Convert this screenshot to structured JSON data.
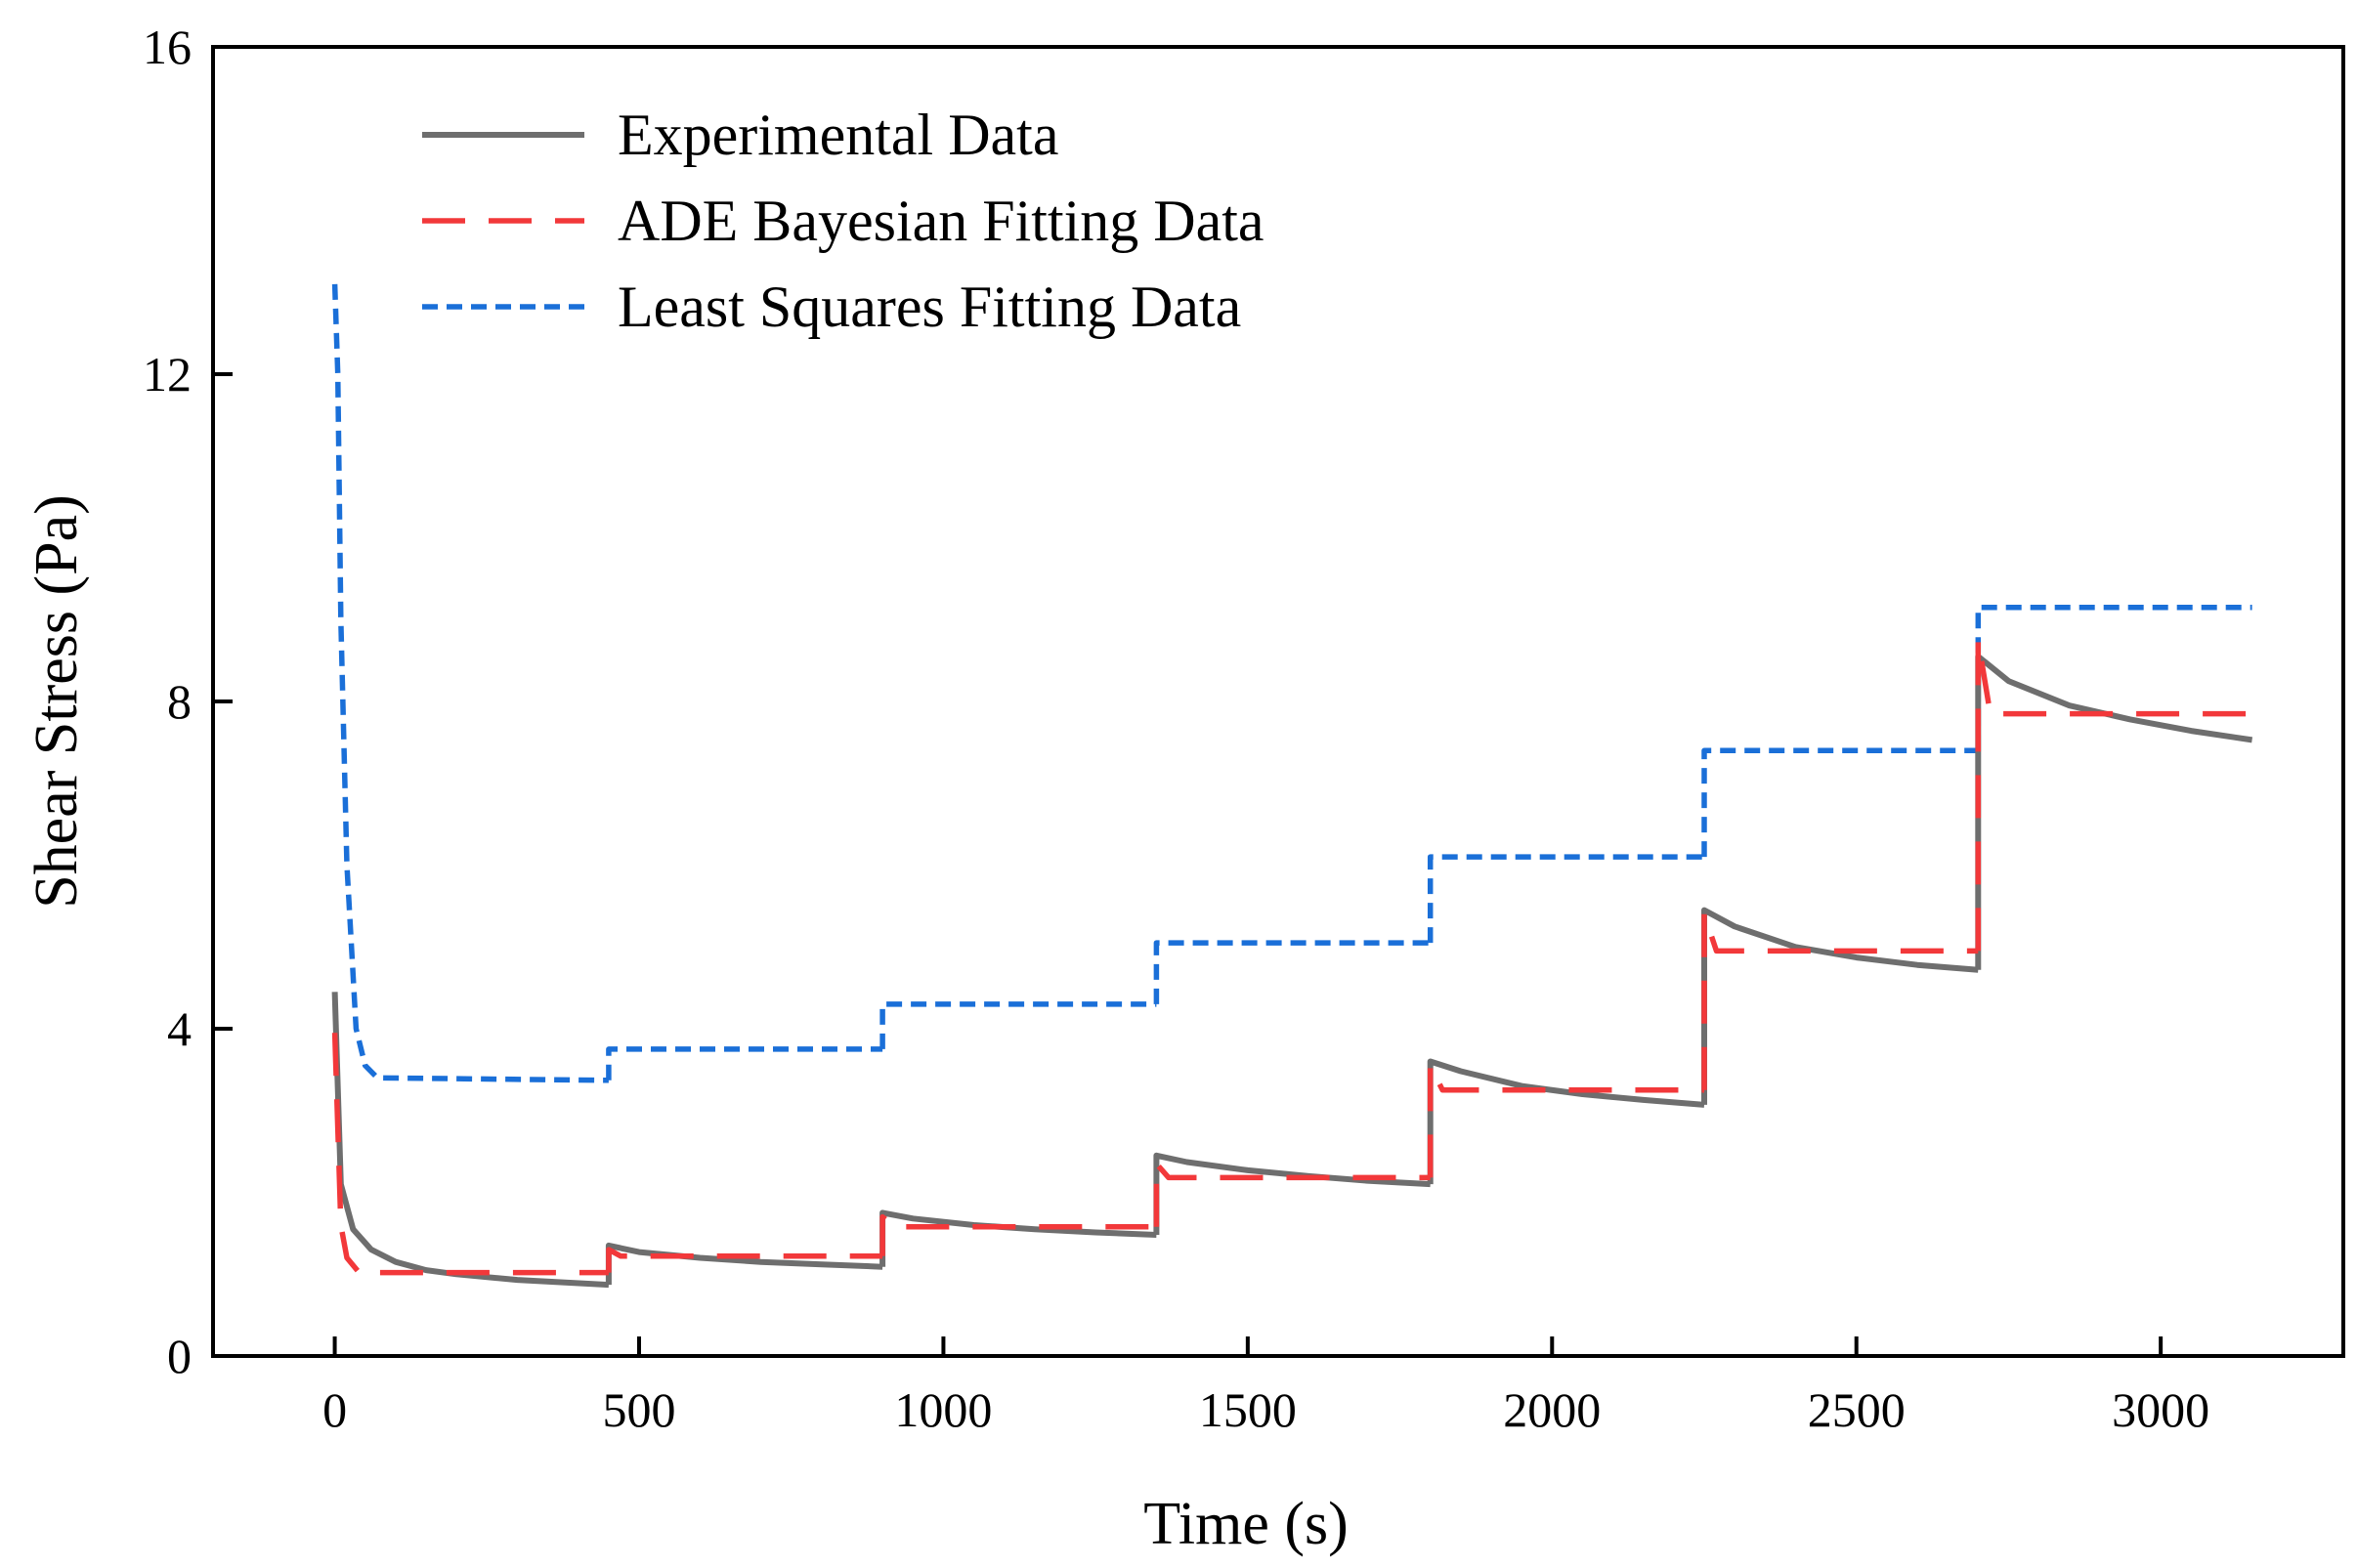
{
  "chart_data": {
    "type": "line",
    "title": "",
    "xlabel": "Time (s)",
    "ylabel": "Shear Stress (Pa)",
    "xlim": [
      -200,
      3300
    ],
    "ylim": [
      0,
      16
    ],
    "xticks": [
      0,
      500,
      1000,
      1500,
      2000,
      2500,
      3000
    ],
    "yticks": [
      0,
      4,
      8,
      12,
      16
    ],
    "grid": false,
    "legend": "top-left",
    "series": [
      {
        "name": "Experimental Data",
        "color": "#6e6e6e",
        "dash": "solid",
        "segments": [
          {
            "t0": 0,
            "t1": 450,
            "peak": 4.45,
            "points": [
              [
                0,
                4.45
              ],
              [
                10,
                2.1
              ],
              [
                30,
                1.55
              ],
              [
                60,
                1.3
              ],
              [
                100,
                1.15
              ],
              [
                150,
                1.05
              ],
              [
                200,
                1.0
              ],
              [
                300,
                0.93
              ],
              [
                450,
                0.87
              ]
            ]
          },
          {
            "t0": 450,
            "t1": 900,
            "peak": 1.35,
            "points": [
              [
                450,
                1.35
              ],
              [
                500,
                1.27
              ],
              [
                600,
                1.2
              ],
              [
                700,
                1.15
              ],
              [
                800,
                1.12
              ],
              [
                900,
                1.09
              ]
            ]
          },
          {
            "t0": 900,
            "t1": 1350,
            "peak": 1.75,
            "points": [
              [
                900,
                1.75
              ],
              [
                950,
                1.68
              ],
              [
                1050,
                1.6
              ],
              [
                1150,
                1.55
              ],
              [
                1250,
                1.51
              ],
              [
                1350,
                1.48
              ]
            ]
          },
          {
            "t0": 1350,
            "t1": 1800,
            "peak": 2.45,
            "points": [
              [
                1350,
                2.45
              ],
              [
                1400,
                2.37
              ],
              [
                1500,
                2.27
              ],
              [
                1600,
                2.2
              ],
              [
                1700,
                2.14
              ],
              [
                1800,
                2.1
              ]
            ]
          },
          {
            "t0": 1800,
            "t1": 2250,
            "peak": 3.6,
            "points": [
              [
                1800,
                3.6
              ],
              [
                1850,
                3.48
              ],
              [
                1950,
                3.3
              ],
              [
                2050,
                3.2
              ],
              [
                2150,
                3.13
              ],
              [
                2250,
                3.07
              ]
            ]
          },
          {
            "t0": 2250,
            "t1": 2700,
            "peak": 5.45,
            "points": [
              [
                2250,
                5.45
              ],
              [
                2300,
                5.25
              ],
              [
                2400,
                5.0
              ],
              [
                2500,
                4.87
              ],
              [
                2600,
                4.78
              ],
              [
                2700,
                4.72
              ]
            ]
          },
          {
            "t0": 2700,
            "t1": 3150,
            "peak": 8.55,
            "points": [
              [
                2700,
                8.55
              ],
              [
                2750,
                8.25
              ],
              [
                2850,
                7.95
              ],
              [
                2950,
                7.78
              ],
              [
                3050,
                7.64
              ],
              [
                3150,
                7.53
              ]
            ]
          }
        ]
      },
      {
        "name": "ADE Bayesian Fitting Data",
        "color": "#f2383a",
        "dash": "dashed",
        "segments": [
          {
            "t0": 0,
            "t1": 450,
            "peak": 3.95,
            "points": [
              [
                0,
                3.95
              ],
              [
                10,
                1.6
              ],
              [
                20,
                1.2
              ],
              [
                40,
                1.02
              ],
              [
                450,
                1.02
              ]
            ]
          },
          {
            "t0": 450,
            "t1": 900,
            "peak": 1.3,
            "points": [
              [
                450,
                1.3
              ],
              [
                470,
                1.22
              ],
              [
                900,
                1.22
              ]
            ]
          },
          {
            "t0": 900,
            "t1": 1350,
            "peak": 1.7,
            "points": [
              [
                900,
                1.7
              ],
              [
                920,
                1.58
              ],
              [
                1350,
                1.58
              ]
            ]
          },
          {
            "t0": 1350,
            "t1": 1800,
            "peak": 2.35,
            "points": [
              [
                1350,
                2.35
              ],
              [
                1370,
                2.18
              ],
              [
                1800,
                2.18
              ]
            ]
          },
          {
            "t0": 1800,
            "t1": 2250,
            "peak": 3.55,
            "points": [
              [
                1800,
                3.55
              ],
              [
                1820,
                3.25
              ],
              [
                2250,
                3.25
              ]
            ]
          },
          {
            "t0": 2250,
            "t1": 2700,
            "peak": 5.4,
            "points": [
              [
                2250,
                5.4
              ],
              [
                2270,
                4.95
              ],
              [
                2700,
                4.95
              ]
            ]
          },
          {
            "t0": 2700,
            "t1": 3150,
            "peak": 8.75,
            "points": [
              [
                2700,
                8.75
              ],
              [
                2720,
                7.85
              ],
              [
                3150,
                7.85
              ]
            ]
          }
        ]
      },
      {
        "name": "Least Squares Fitting Data",
        "color": "#1a6fd8",
        "dash": "dotted",
        "segments": [
          {
            "t0": 0,
            "t1": 450,
            "peak": 13.1,
            "points": [
              [
                0,
                13.1
              ],
              [
                5,
                12.0
              ],
              [
                10,
                9.0
              ],
              [
                20,
                6.0
              ],
              [
                35,
                4.0
              ],
              [
                50,
                3.55
              ],
              [
                70,
                3.4
              ],
              [
                450,
                3.37
              ]
            ]
          },
          {
            "t0": 450,
            "t1": 900,
            "peak": 3.75,
            "points": [
              [
                450,
                3.75
              ],
              [
                900,
                3.75
              ]
            ]
          },
          {
            "t0": 900,
            "t1": 1350,
            "peak": 4.3,
            "points": [
              [
                900,
                4.3
              ],
              [
                1350,
                4.3
              ]
            ]
          },
          {
            "t0": 1350,
            "t1": 1800,
            "peak": 5.05,
            "points": [
              [
                1350,
                5.05
              ],
              [
                1800,
                5.05
              ]
            ]
          },
          {
            "t0": 1800,
            "t1": 2250,
            "peak": 6.1,
            "points": [
              [
                1800,
                6.1
              ],
              [
                2250,
                6.1
              ]
            ]
          },
          {
            "t0": 2250,
            "t1": 2700,
            "peak": 7.4,
            "points": [
              [
                2250,
                7.4
              ],
              [
                2700,
                7.4
              ]
            ]
          },
          {
            "t0": 2700,
            "t1": 3150,
            "peak": 9.15,
            "points": [
              [
                2700,
                9.15
              ],
              [
                3150,
                9.15
              ]
            ]
          }
        ]
      }
    ]
  }
}
